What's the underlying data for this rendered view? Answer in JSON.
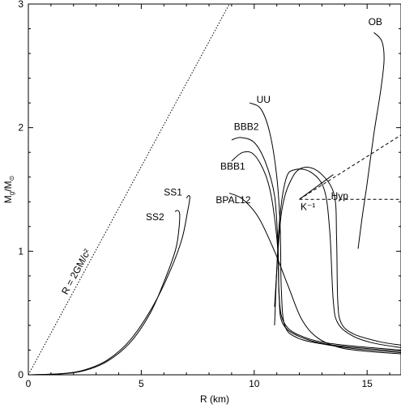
{
  "chart_data": {
    "type": "line",
    "title": "",
    "xlabel": "R (km)",
    "ylabel_main": "M",
    "ylabel_sub": "g",
    "ylabel_rest": "/M",
    "ylabel_sun": "⊙",
    "xlim": [
      0,
      16.5
    ],
    "ylim": [
      0,
      3
    ],
    "xticks": [
      0,
      5,
      10,
      15
    ],
    "yticks": [
      0,
      1,
      2,
      3
    ],
    "grid": false,
    "reference_lines": [
      {
        "label": "R = 2GM/c²",
        "points": [
          [
            0,
            0
          ],
          [
            8.9,
            3.0
          ]
        ],
        "style": "dotted"
      }
    ],
    "series": [
      {
        "name": "OB",
        "label_at": [
          15.05,
          2.83
        ],
        "points": [
          [
            14.6,
            1.02
          ],
          [
            14.8,
            1.3
          ],
          [
            15.0,
            1.55
          ],
          [
            15.3,
            1.95
          ],
          [
            15.6,
            2.3
          ],
          [
            15.75,
            2.55
          ],
          [
            15.65,
            2.7
          ],
          [
            15.3,
            2.77
          ]
        ]
      },
      {
        "name": "UU",
        "label_at": [
          10.1,
          2.2
        ],
        "points": [
          [
            9.8,
            2.2
          ],
          [
            10.3,
            2.15
          ],
          [
            10.7,
            1.95
          ],
          [
            11.0,
            1.6
          ],
          [
            11.15,
            1.2
          ],
          [
            11.2,
            0.7
          ],
          [
            11.35,
            0.4
          ],
          [
            11.9,
            0.3
          ],
          [
            13.0,
            0.25
          ],
          [
            14.5,
            0.21
          ],
          [
            16.5,
            0.18
          ]
        ]
      },
      {
        "name": "BBB2",
        "label_at": [
          9.1,
          1.98
        ],
        "points": [
          [
            9.0,
            1.9
          ],
          [
            9.4,
            1.92
          ],
          [
            10.0,
            1.88
          ],
          [
            10.5,
            1.72
          ],
          [
            10.9,
            1.45
          ],
          [
            11.05,
            1.05
          ],
          [
            11.1,
            0.65
          ],
          [
            11.3,
            0.43
          ],
          [
            12.0,
            0.32
          ],
          [
            13.5,
            0.25
          ],
          [
            16.5,
            0.2
          ]
        ]
      },
      {
        "name": "BBB1",
        "label_at": [
          8.5,
          1.66
        ],
        "points": [
          [
            9.0,
            1.73
          ],
          [
            9.5,
            1.8
          ],
          [
            10.0,
            1.78
          ],
          [
            10.5,
            1.62
          ],
          [
            10.8,
            1.4
          ],
          [
            11.05,
            1.0
          ],
          [
            11.1,
            0.65
          ],
          [
            11.25,
            0.42
          ],
          [
            12.0,
            0.31
          ],
          [
            13.5,
            0.24
          ],
          [
            16.5,
            0.19
          ]
        ]
      },
      {
        "name": "BPAL12",
        "label_at": [
          8.3,
          1.39
        ],
        "points": [
          [
            8.9,
            1.47
          ],
          [
            9.5,
            1.42
          ],
          [
            10.2,
            1.27
          ],
          [
            10.9,
            1.0
          ],
          [
            11.5,
            0.72
          ],
          [
            12.1,
            0.45
          ],
          [
            12.8,
            0.3
          ],
          [
            13.8,
            0.22
          ],
          [
            15.0,
            0.19
          ],
          [
            16.5,
            0.17
          ]
        ]
      },
      {
        "name": "Hyp",
        "label_at": [
          13.4,
          1.42
        ],
        "points": [
          [
            10.9,
            0.4
          ],
          [
            11.1,
            1.2
          ],
          [
            11.4,
            1.58
          ],
          [
            11.8,
            1.66
          ],
          [
            12.5,
            1.64
          ],
          [
            13.1,
            1.5
          ],
          [
            13.35,
            1.15
          ],
          [
            13.5,
            0.6
          ],
          [
            13.7,
            0.42
          ],
          [
            14.3,
            0.32
          ],
          [
            15.2,
            0.26
          ],
          [
            16.5,
            0.22
          ]
        ]
      },
      {
        "name": "",
        "points": [
          [
            10.9,
            0.55
          ],
          [
            11.2,
            1.3
          ],
          [
            11.7,
            1.6
          ],
          [
            12.3,
            1.68
          ],
          [
            13.0,
            1.62
          ],
          [
            13.55,
            1.45
          ],
          [
            13.65,
            1.1
          ],
          [
            13.7,
            0.6
          ],
          [
            13.85,
            0.42
          ],
          [
            14.4,
            0.33
          ],
          [
            15.5,
            0.27
          ],
          [
            16.5,
            0.24
          ]
        ]
      },
      {
        "name": "SS1",
        "label_at": [
          6.0,
          1.45
        ],
        "points": [
          [
            0,
            0
          ],
          [
            1.5,
            0.01
          ],
          [
            2.5,
            0.04
          ],
          [
            3.5,
            0.12
          ],
          [
            4.5,
            0.28
          ],
          [
            5.5,
            0.55
          ],
          [
            6.3,
            0.85
          ],
          [
            6.8,
            1.1
          ],
          [
            7.05,
            1.32
          ],
          [
            7.15,
            1.43
          ],
          [
            7.1,
            1.45
          ],
          [
            7.0,
            1.43
          ]
        ]
      },
      {
        "name": "SS2",
        "label_at": [
          5.2,
          1.25
        ],
        "points": [
          [
            0,
            0
          ],
          [
            1.5,
            0.008
          ],
          [
            2.5,
            0.035
          ],
          [
            3.5,
            0.11
          ],
          [
            4.5,
            0.26
          ],
          [
            5.4,
            0.5
          ],
          [
            6.0,
            0.75
          ],
          [
            6.5,
            1.0
          ],
          [
            6.65,
            1.15
          ],
          [
            6.7,
            1.3
          ],
          [
            6.6,
            1.33
          ],
          [
            6.5,
            1.32
          ]
        ]
      }
    ],
    "annotations": [
      {
        "text": "K⁻¹",
        "at": [
          12.05,
          1.36
        ]
      }
    ],
    "annotation_lines": [
      {
        "points": [
          [
            12.0,
            1.42
          ],
          [
            16.5,
            1.94
          ]
        ],
        "style": "dashed"
      },
      {
        "points": [
          [
            12.0,
            1.42
          ],
          [
            16.5,
            1.42
          ]
        ],
        "style": "dashed"
      },
      {
        "points": [
          [
            12.0,
            1.42
          ],
          [
            13.5,
            1.62
          ]
        ],
        "style": "solid"
      }
    ]
  }
}
